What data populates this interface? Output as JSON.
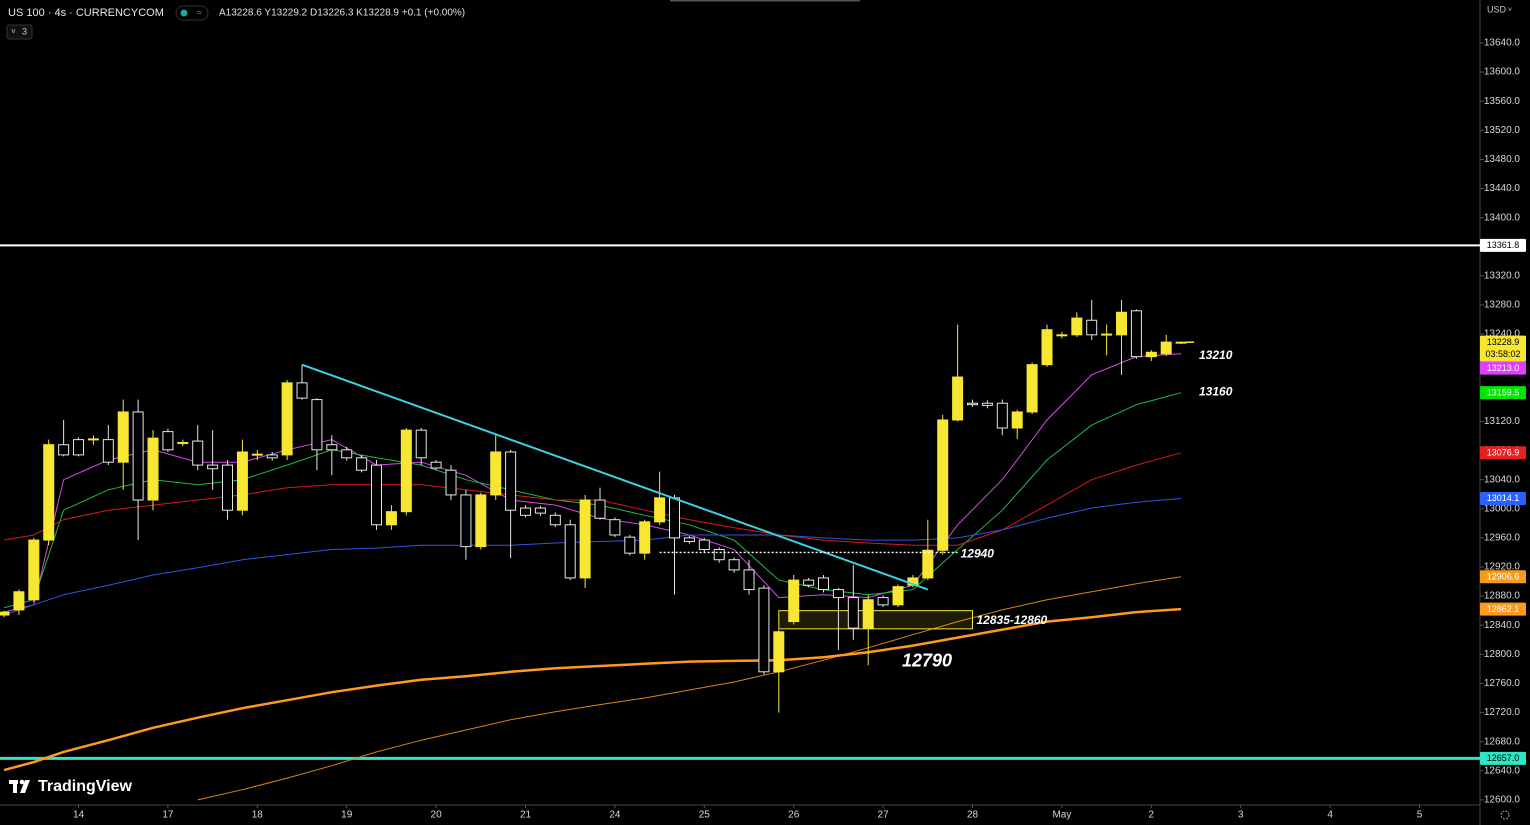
{
  "header": {
    "symbol": "US 100 · 4s · CURRENCYCOM",
    "ohlc": "A13228.6 Y13229.2 D13226.3 K13228.9 +0.1 (+0.00%)",
    "indicators": "3",
    "currency": "USD",
    "brand": "TradingView"
  },
  "chart_data": {
    "type": "candlestick",
    "open": [
      12854,
      12861,
      12875,
      12957,
      13088,
      13095,
      13095,
      13095,
      13064,
      13133,
      13012,
      13106,
      13090,
      13093,
      13060,
      13060,
      12998,
      13074,
      13074,
      13074,
      13173,
      13150,
      13088,
      13081,
      13070,
      13060,
      12978,
      12996,
      13108,
      13064,
      13053,
      13019,
      12948,
      13019,
      13078,
      13001,
      13001,
      12991,
      12978,
      12905,
      13012,
      12985,
      12961,
      12939,
      12982,
      13015,
      12960,
      12957,
      12944,
      12930,
      12916,
      12891,
      12776,
      12845,
      12902,
      12905,
      12889,
      12878,
      12836,
      12878,
      12868,
      12895,
      12905,
      12943,
      13122,
      13145,
      13145,
      13145,
      13111,
      13133,
      13198,
      13238,
      13239,
      13259,
      13239,
      13239,
      13272,
      13209,
      13213,
      13228.6
    ],
    "high": [
      12860,
      12889,
      12960,
      13095,
      13122,
      13098,
      13101,
      13115,
      13150,
      13150,
      13108,
      13110,
      13095,
      13115,
      13108,
      13067,
      13095,
      13081,
      13078,
      13177,
      13198,
      13152,
      13101,
      13085,
      13074,
      13067,
      13005,
      13111,
      13111,
      13067,
      13060,
      13026,
      13022,
      13101,
      13081,
      13005,
      13004,
      12995,
      12985,
      13019,
      13029,
      12988,
      12964,
      12985,
      13051,
      13019,
      12963,
      12960,
      12947,
      12933,
      12930,
      12895,
      12834,
      12909,
      12905,
      12909,
      12891,
      12923,
      12882,
      12881,
      12896,
      12909,
      12985,
      13129,
      13253,
      13150,
      13149,
      13150,
      13136,
      13201,
      13253,
      13243,
      13270,
      13287,
      13253,
      13287,
      13274,
      13218,
      13239,
      13229.2
    ],
    "low": [
      12851,
      12854,
      12872,
      12950,
      13072,
      13072,
      13088,
      13060,
      13026,
      12957,
      12998,
      13078,
      13086,
      13053,
      13026,
      12985,
      12991,
      13067,
      13066,
      13067,
      13150,
      13053,
      13046,
      13066,
      13050,
      12971,
      12971,
      12991,
      13060,
      13053,
      13012,
      12930,
      12944,
      13012,
      12932,
      12988,
      12990,
      12975,
      12902,
      12891,
      12985,
      12961,
      12936,
      12930,
      12978,
      12882,
      12952,
      12940,
      12926,
      12912,
      12882,
      12772,
      12720,
      12841,
      12892,
      12885,
      12806,
      12820,
      12785,
      12865,
      12865,
      12892,
      12902,
      12937,
      13120,
      13140,
      13138,
      13101,
      13096,
      13130,
      13195,
      13234,
      13236,
      13232,
      13211,
      13184,
      13206,
      13203,
      13210,
      13226.3
    ],
    "close": [
      12858,
      12886,
      12957,
      13088,
      13074,
      13074,
      13096,
      13064,
      13133,
      13012,
      13097,
      13081,
      13091,
      13060,
      13055,
      12998,
      13078,
      13075,
      13070,
      13173,
      13152,
      13081,
      13081,
      13070,
      13053,
      12978,
      12996,
      13108,
      13070,
      13056,
      13019,
      12948,
      13019,
      13078,
      12998,
      12991,
      12994,
      12978,
      12905,
      13012,
      12987,
      12964,
      12939,
      12982,
      13015,
      12960,
      12955,
      12944,
      12930,
      12916,
      12889,
      12776,
      12831,
      12902,
      12895,
      12889,
      12878,
      12836,
      12875,
      12868,
      12893,
      12905,
      12943,
      13122,
      13181,
      13143,
      13142,
      13111,
      13133,
      13198,
      13246,
      13239,
      13262,
      13239,
      13240,
      13270,
      13209,
      13215,
      13229,
      13228.9
    ],
    "up_color": "#f7e733",
    "down_color": "#000000",
    "outline_color": "#e6e6e6",
    "xlim": [
      -0.27,
      99.06
    ],
    "xticks": [
      {
        "value": 5,
        "label": "14"
      },
      {
        "value": 11,
        "label": "17"
      },
      {
        "value": 17,
        "label": "18"
      },
      {
        "value": 23,
        "label": "19"
      },
      {
        "value": 29,
        "label": "20"
      },
      {
        "value": 35,
        "label": "21"
      },
      {
        "value": 41,
        "label": "24"
      },
      {
        "value": 47,
        "label": "25"
      },
      {
        "value": 53,
        "label": "26"
      },
      {
        "value": 59,
        "label": "27"
      },
      {
        "value": 65,
        "label": "28"
      },
      {
        "value": 71,
        "label": "May"
      },
      {
        "value": 77,
        "label": "2"
      },
      {
        "value": 83,
        "label": "3"
      },
      {
        "value": 89,
        "label": "4"
      },
      {
        "value": 95,
        "label": "5"
      }
    ],
    "ylim": [
      12593,
      13699
    ],
    "yticks": [
      {
        "value": 12600,
        "label": "12600.0"
      },
      {
        "value": 12640,
        "label": "12640.0"
      },
      {
        "value": 12680,
        "label": "12680.0"
      },
      {
        "value": 12720,
        "label": "12720.0"
      },
      {
        "value": 12760,
        "label": "12760.0"
      },
      {
        "value": 12800,
        "label": "12800.0"
      },
      {
        "value": 12840,
        "label": "12840.0"
      },
      {
        "value": 12880,
        "label": "12880.0"
      },
      {
        "value": 12920,
        "label": "12920.0"
      },
      {
        "value": 12960,
        "label": "12960.0"
      },
      {
        "value": 13000,
        "label": "13000.0"
      },
      {
        "value": 13040,
        "label": "13040.0"
      },
      {
        "value": 13080,
        "label": "13080.0"
      },
      {
        "value": 13120,
        "label": "13120.0"
      },
      {
        "value": 13160,
        "label": "13160.0"
      },
      {
        "value": 13200,
        "label": "13200.0"
      },
      {
        "value": 13240,
        "label": "13240.0"
      },
      {
        "value": 13280,
        "label": "13280.0"
      },
      {
        "value": 13320,
        "label": "13320.0"
      },
      {
        "value": 13360,
        "label": "13360.0"
      },
      {
        "value": 13400,
        "label": "13400.0"
      },
      {
        "value": 13440,
        "label": "13440.0"
      },
      {
        "value": 13480,
        "label": "13480.0"
      },
      {
        "value": 13520,
        "label": "13520.0"
      },
      {
        "value": 13560,
        "label": "13560.0"
      },
      {
        "value": 13600,
        "label": "13600.0"
      },
      {
        "value": 13640,
        "label": "13640.0"
      }
    ],
    "grid": false,
    "lines": [
      {
        "color": "#d24de6",
        "label_color": "#e040fb",
        "width": 1,
        "label": "13213.0",
        "x": [
          0,
          2,
          4,
          7,
          10,
          13,
          16,
          19,
          22,
          25,
          28,
          31,
          34,
          37,
          40,
          43,
          46,
          49,
          52,
          55,
          58,
          61,
          64,
          67,
          70,
          73,
          76,
          79
        ],
        "values": [
          12858,
          12868,
          13040,
          13067,
          13081,
          13064,
          13064,
          13081,
          13095,
          13060,
          13064,
          13046,
          13012,
          13005,
          12987,
          12978,
          12964,
          12944,
          12878,
          12882,
          12878,
          12895,
          12978,
          13040,
          13122,
          13184,
          13209,
          13213
        ]
      },
      {
        "color": "#1fb84a",
        "label_color": "#00e600",
        "width": 1,
        "label": "13159.5",
        "x": [
          0,
          2,
          4,
          7,
          10,
          13,
          16,
          19,
          22,
          25,
          28,
          31,
          34,
          37,
          40,
          43,
          46,
          49,
          52,
          55,
          58,
          61,
          64,
          67,
          70,
          73,
          76,
          79
        ],
        "values": [
          12864,
          12875,
          12998,
          13026,
          13040,
          13033,
          13040,
          13060,
          13081,
          13070,
          13060,
          13040,
          13026,
          13012,
          13005,
          12991,
          12978,
          12957,
          12902,
          12889,
          12882,
          12889,
          12944,
          12998,
          13067,
          13115,
          13143,
          13159.5
        ]
      },
      {
        "color": "#d81b1b",
        "label_color": "#e52020",
        "width": 1,
        "label": "13076.9",
        "x": [
          0,
          2,
          4,
          7,
          10,
          13,
          16,
          19,
          22,
          25,
          28,
          31,
          34,
          37,
          40,
          43,
          46,
          49,
          52,
          55,
          58,
          61,
          64,
          67,
          70,
          73,
          76,
          79
        ],
        "values": [
          12957,
          12964,
          12985,
          12998,
          13005,
          13012,
          13019,
          13029,
          13033,
          13033,
          13033,
          13026,
          13019,
          13012,
          13012,
          12998,
          12985,
          12974,
          12964,
          12957,
          12953,
          12950,
          12950,
          12971,
          13005,
          13040,
          13060,
          13076.9
        ]
      },
      {
        "color": "#2f55e0",
        "label_color": "#2962ff",
        "width": 1,
        "label": "13014.1",
        "x": [
          0,
          2,
          4,
          7,
          10,
          13,
          16,
          19,
          22,
          25,
          28,
          31,
          34,
          37,
          40,
          43,
          46,
          49,
          52,
          55,
          58,
          61,
          64,
          67,
          70,
          73,
          76,
          79
        ],
        "values": [
          12854,
          12868,
          12882,
          12895,
          12909,
          12919,
          12930,
          12937,
          12944,
          12946,
          12950,
          12950,
          12950,
          12953,
          12955,
          12957,
          12964,
          12964,
          12964,
          12960,
          12957,
          12957,
          12960,
          12971,
          12987,
          13001,
          13009,
          13014.1
        ]
      },
      {
        "color": "#d98512",
        "label_color": "#f59b1c",
        "width": 1,
        "label": "12906.6",
        "x": [
          13,
          16,
          19,
          22,
          25,
          28,
          31,
          34,
          37,
          40,
          43,
          46,
          49,
          52,
          55,
          58,
          61,
          64,
          67,
          70,
          73,
          76,
          79
        ],
        "values": [
          12600,
          12614,
          12630,
          12647,
          12666,
          12682,
          12696,
          12710,
          12721,
          12731,
          12740,
          12751,
          12762,
          12776,
          12792,
          12809,
          12827,
          12845,
          12861,
          12875,
          12886,
          12897,
          12906.6
        ]
      },
      {
        "color": "#ff9a1f",
        "label_color": "#ff9a1f",
        "width": 2.5,
        "label": "12862.1",
        "x": [
          0,
          2,
          4,
          7,
          10,
          13,
          16,
          19,
          22,
          25,
          28,
          31,
          34,
          37,
          40,
          43,
          46,
          49,
          52,
          55,
          58,
          61,
          64,
          67,
          70,
          73,
          76,
          79
        ],
        "values": [
          12641,
          12652,
          12666,
          12682,
          12699,
          12713,
          12726,
          12737,
          12748,
          12757,
          12765,
          12770,
          12776,
          12781,
          12784,
          12787,
          12790,
          12791,
          12792,
          12796,
          12803,
          12812,
          12823,
          12834,
          12845,
          12851,
          12858,
          12862.1
        ]
      }
    ],
    "hlines": [
      {
        "value": 13361.8,
        "label": "13361.8",
        "color": "#ffffff",
        "width": 2
      },
      {
        "value": 12657,
        "label": "12657.0",
        "color": "#2ee6c4",
        "width": 3
      }
    ],
    "trendline": {
      "x": [
        20,
        62
      ],
      "values": [
        13198,
        12889
      ],
      "color": "#3fd0dd"
    },
    "level": {
      "x": [
        44,
        64
      ],
      "value": 12940,
      "label": "12940",
      "color": "#ffffff"
    },
    "zone": {
      "x": [
        52,
        65
      ],
      "low": 12835,
      "high": 12860,
      "label": "12835-12860",
      "color": "#f7e733"
    },
    "annotations": [
      {
        "label": "13210",
        "value": 13210
      },
      {
        "label": "13160",
        "value": 13160
      },
      {
        "label": "12790",
        "value": 12790
      }
    ],
    "last": {
      "value": 13228.9,
      "label": "13228.9",
      "countdown": "03:58:02",
      "color": "#f7e733"
    }
  }
}
